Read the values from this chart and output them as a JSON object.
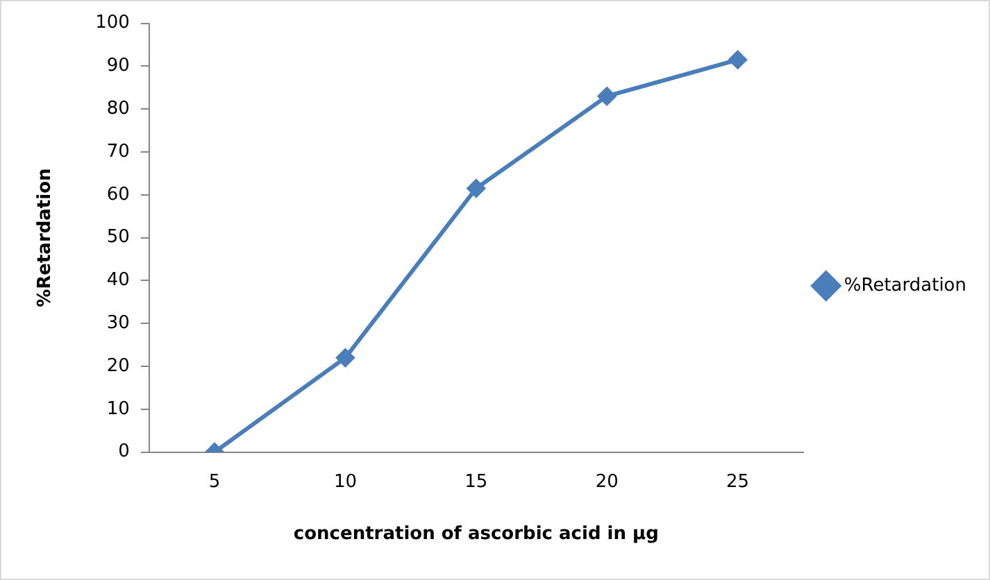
{
  "chart_data": {
    "type": "line",
    "xlabel": "concentration of ascorbic acid in µg",
    "ylabel": "%Retardation",
    "categories": [
      "5",
      "10",
      "15",
      "20",
      "25"
    ],
    "series": [
      {
        "name": "%Retardation",
        "color": "#4a7ebb",
        "values": [
          0,
          22,
          61.5,
          83,
          91.5
        ]
      }
    ],
    "ylim": [
      0,
      100
    ],
    "yticks": [
      0,
      10,
      20,
      30,
      40,
      50,
      60,
      70,
      80,
      90,
      100
    ],
    "grid": false,
    "legend": "right",
    "marker": "diamond",
    "line_style": "solid"
  }
}
